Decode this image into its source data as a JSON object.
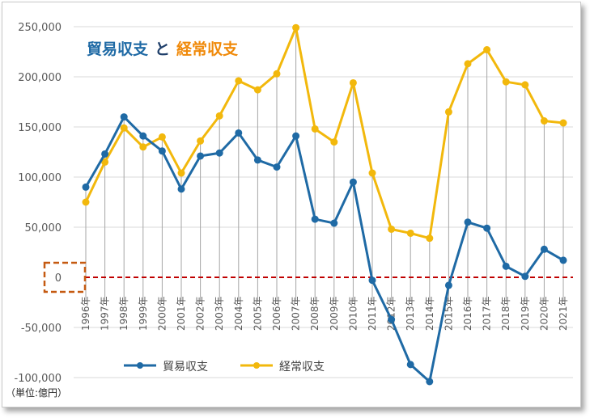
{
  "chart_data": {
    "type": "line",
    "title_parts": [
      "貿易収支",
      "と",
      "経常収支"
    ],
    "unit_label": "（単位:億円）",
    "categories": [
      "1996年",
      "1997年",
      "1998年",
      "1999年",
      "2000年",
      "2001年",
      "2002年",
      "2003年",
      "2004年",
      "2005年",
      "2006年",
      "2007年",
      "2008年",
      "2009年",
      "2010年",
      "2011年",
      "2012年",
      "2013年",
      "2014年",
      "2015年",
      "2016年",
      "2017年",
      "2018年",
      "2019年",
      "2020年",
      "2021年"
    ],
    "y_ticks": [
      "250,000",
      "200,000",
      "150,000",
      "100,000",
      "50,000",
      "0",
      "-50,000",
      "-100,000"
    ],
    "y_tick_values": [
      250000,
      200000,
      150000,
      100000,
      50000,
      0,
      -50000,
      -100000
    ],
    "ylim": [
      -100000,
      250000
    ],
    "grid": "horizontal",
    "legend_position": "bottom",
    "series": [
      {
        "name": "貿易収支",
        "color": "#1f6aa5",
        "values": [
          90000,
          123000,
          160000,
          141000,
          126000,
          88000,
          121000,
          124000,
          144000,
          117000,
          110000,
          141000,
          58000,
          54000,
          95000,
          -3000,
          -42000,
          -87000,
          -104000,
          -8000,
          55000,
          49000,
          11000,
          1000,
          28000,
          17000
        ]
      },
      {
        "name": "経常収支",
        "color": "#f2b80c",
        "values": [
          75000,
          115000,
          149000,
          130000,
          140000,
          104000,
          136000,
          161000,
          196000,
          187000,
          203000,
          249000,
          148000,
          135000,
          194000,
          104000,
          48000,
          44000,
          39000,
          165000,
          213000,
          227000,
          195000,
          192000,
          156000,
          154000
        ]
      }
    ],
    "colors": {
      "title_trade": "#1f6aa5",
      "title_current": "#f08a0a",
      "zero_line": "#c00000",
      "highlight_box": "#c55a11",
      "drop_lines": "#a6a6a6",
      "grid": "#d9d9d9"
    }
  }
}
